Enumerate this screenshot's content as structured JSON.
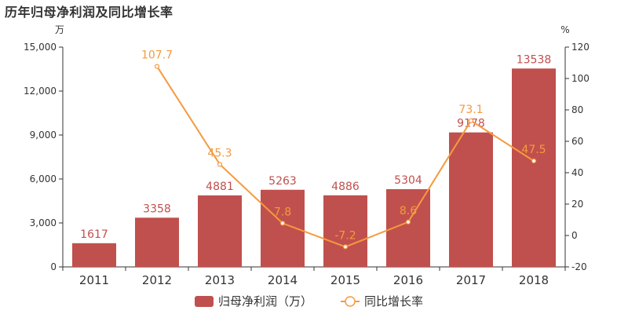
{
  "title": "历年归母净利润及同比增长率",
  "chart_data": {
    "type": "bar",
    "categories": [
      "2011",
      "2012",
      "2013",
      "2014",
      "2015",
      "2016",
      "2017",
      "2018"
    ],
    "series": [
      {
        "name": "归母净利润（万）",
        "type": "bar",
        "axis": "left",
        "values": [
          1617,
          3358,
          4881,
          5263,
          4886,
          5304,
          9178,
          13538
        ],
        "labels": [
          "1617",
          "3358",
          "4881",
          "5263",
          "4886",
          "5304",
          "9178",
          "13538"
        ]
      },
      {
        "name": "同比增长率",
        "type": "line",
        "axis": "right",
        "values": [
          null,
          107.7,
          45.3,
          7.8,
          -7.2,
          8.6,
          73.1,
          47.5
        ],
        "labels": [
          "",
          "107.7",
          "45.3",
          "7.8",
          "-7.2",
          "8.6",
          "73.1",
          "47.5"
        ]
      }
    ],
    "y_left": {
      "unit": "万",
      "min": 0,
      "max": 15000,
      "ticks": [
        0,
        3000,
        6000,
        9000,
        12000,
        15000
      ],
      "tick_labels": [
        "0",
        "3,000",
        "6,000",
        "9,000",
        "12,000",
        "15,000"
      ]
    },
    "y_right": {
      "unit": "%",
      "min": -20,
      "max": 120,
      "ticks": [
        -20,
        0,
        20,
        40,
        60,
        80,
        100,
        120
      ],
      "tick_labels": [
        "-20",
        "0",
        "20",
        "40",
        "60",
        "80",
        "100",
        "120"
      ]
    },
    "colors": {
      "bar": "#c0504d",
      "line": "#f59a3f",
      "axis": "#333333"
    },
    "legend": {
      "placement": "bottom",
      "items": [
        {
          "label": "归母净利润（万）",
          "icon": "bar-swatch-icon"
        },
        {
          "label": "同比增长率",
          "icon": "line-marker-icon"
        }
      ]
    },
    "grid": false
  }
}
